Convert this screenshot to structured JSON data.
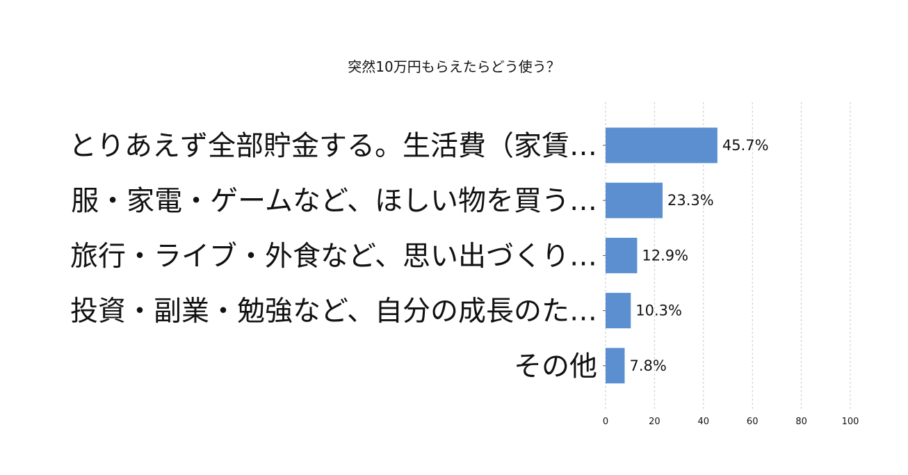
{
  "chart_data": {
    "type": "bar",
    "orientation": "horizontal",
    "title": "突然10万円もらえたらどう使う？",
    "categories": [
      "とりあえず全部貯金する。生活費（家賃…",
      "服・家電・ゲームなど、ほしい物を買う…",
      "旅行・ライブ・外食など、思い出づくり…",
      "投資・副業・勉強など、自分の成長のた…",
      "その他"
    ],
    "values": [
      45.7,
      23.3,
      12.9,
      10.3,
      7.8
    ],
    "value_labels": [
      "45.7%",
      "23.3%",
      "12.9%",
      "10.3%",
      "7.8%"
    ],
    "xlim": [
      0,
      100
    ],
    "xticks": [
      0,
      20,
      40,
      60,
      80,
      100
    ],
    "xtick_labels": [
      "0",
      "20",
      "40",
      "60",
      "80",
      "100"
    ],
    "grid": true,
    "bar_color": "#5b8fd0",
    "xlabel": "",
    "ylabel": ""
  }
}
